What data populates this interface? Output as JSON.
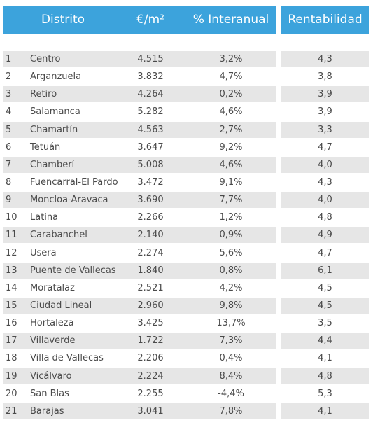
{
  "table": {
    "header": [
      "Distrito",
      "€/m²",
      "% Interanual",
      "Rentabilidad"
    ],
    "rows": [
      [
        "1",
        "Centro",
        "4.515",
        "3,2%",
        "4,3"
      ],
      [
        "2",
        "Arganzuela",
        "3.832",
        "4,7%",
        "3,8"
      ],
      [
        "3",
        "Retiro",
        "4.264",
        "0,2%",
        "3,9"
      ],
      [
        "4",
        "Salamanca",
        "5.282",
        "4,6%",
        "3,9"
      ],
      [
        "5",
        "Chamartín",
        "4.563",
        "2,7%",
        "3,3"
      ],
      [
        "6",
        "Tetuán",
        "3.647",
        "9,2%",
        "4,7"
      ],
      [
        "7",
        "Chamberí",
        "5.008",
        "4,6%",
        "4,0"
      ],
      [
        "8",
        "Fuencarral-El Pardo",
        "3.472",
        "9,1%",
        "4,3"
      ],
      [
        "9",
        "Moncloa-Aravaca",
        "3.690",
        "7,7%",
        "4,0"
      ],
      [
        "10",
        "Latina",
        "2.266",
        "1,2%",
        "4,8"
      ],
      [
        "11",
        "Carabanchel",
        "2.140",
        "0,9%",
        "4,9"
      ],
      [
        "12",
        "Usera",
        "2.274",
        "5,6%",
        "4,7"
      ],
      [
        "13",
        "Puente de Vallecas",
        "1.840",
        "0,8%",
        "6,1"
      ],
      [
        "14",
        "Moratalaz",
        "2.521",
        "4,2%",
        "4,5"
      ],
      [
        "15",
        "Ciudad Lineal",
        "2.960",
        "9,8%",
        "4,5"
      ],
      [
        "16",
        "Hortaleza",
        "3.425",
        "13,7%",
        "3,5"
      ],
      [
        "17",
        "Villaverde",
        "1.722",
        "7,3%",
        "4,4"
      ],
      [
        "18",
        "Villa de Vallecas",
        "2.206",
        "0,4%",
        "4,1"
      ],
      [
        "19",
        "Vicálvaro",
        "2.224",
        "8,4%",
        "4,8"
      ],
      [
        "20",
        "San Blas",
        "2.255",
        "-4,4%",
        "5,3"
      ],
      [
        "21",
        "Barajas",
        "3.041",
        "7,8%",
        "4,1"
      ]
    ]
  }
}
